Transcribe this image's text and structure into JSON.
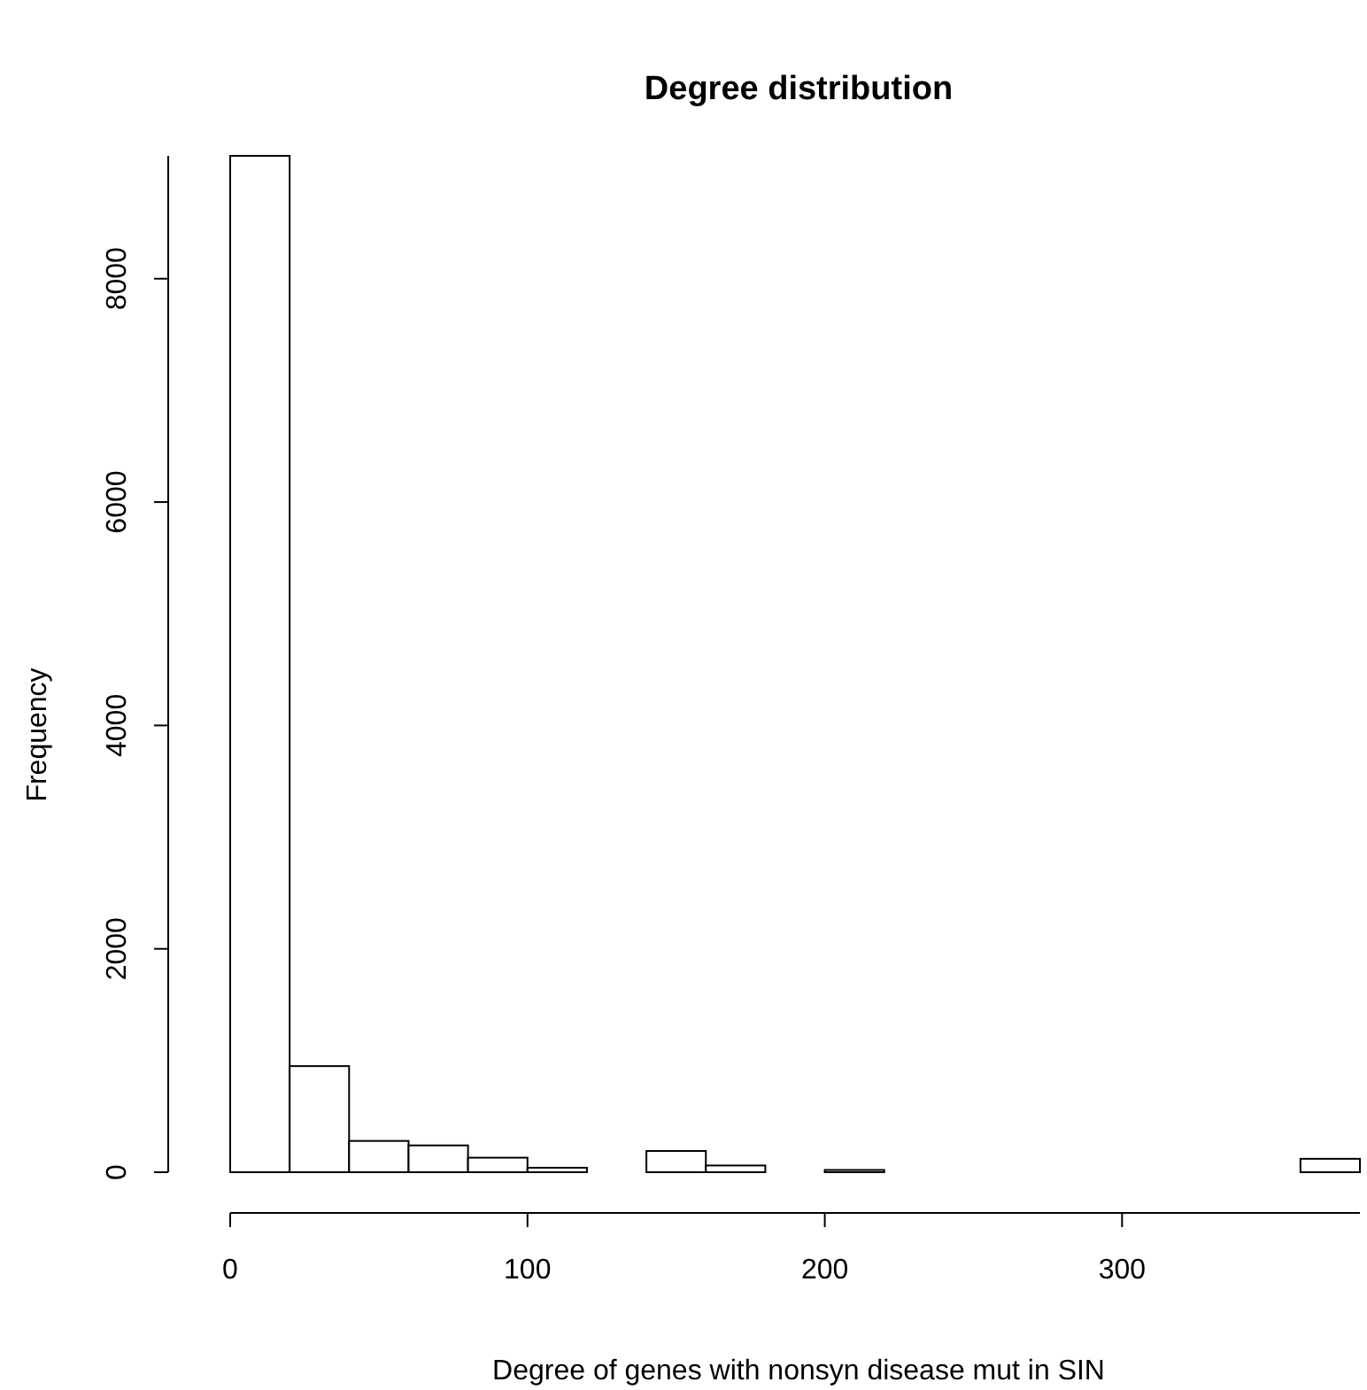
{
  "chart_data": {
    "type": "histogram",
    "title": "Degree distribution",
    "xlabel": "Degree of genes with nonsyn disease mut in SIN",
    "ylabel": "Frequency",
    "bins": [
      0,
      20,
      40,
      60,
      80,
      100,
      120,
      140,
      160,
      180,
      200,
      220,
      240,
      260,
      280,
      300,
      320,
      340,
      360,
      380
    ],
    "values": [
      9100,
      950,
      280,
      240,
      130,
      40,
      0,
      190,
      60,
      0,
      20,
      0,
      0,
      0,
      0,
      0,
      0,
      0,
      120
    ],
    "color": "#ffffff",
    "xlim": [
      0,
      380
    ],
    "xticks": [
      0,
      100,
      200,
      300
    ],
    "ylim": [
      0,
      9100
    ],
    "yticks": [
      0,
      2000,
      4000,
      6000,
      8000
    ],
    "grid": false
  }
}
